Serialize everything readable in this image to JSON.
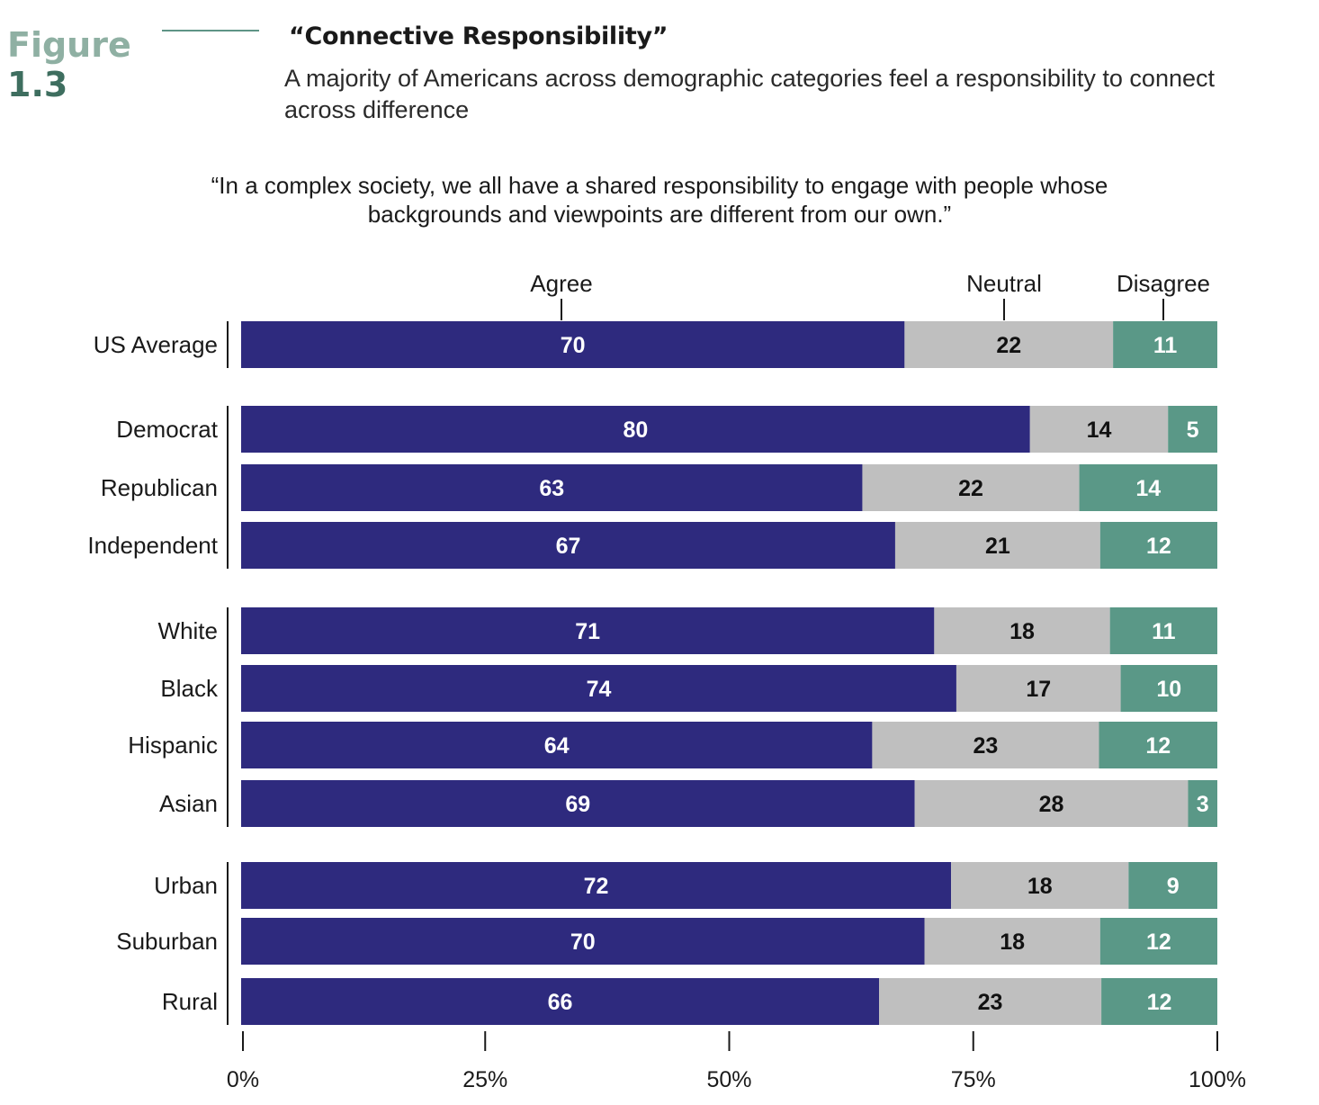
{
  "figure": {
    "word": "Figure",
    "number": "1.3"
  },
  "title": "“Connective Responsibility”",
  "subtitle": "A majority of Americans across demographic categories feel a responsibility to connect across difference",
  "question": "“In a complex society, we all have a shared responsibility to engage with people whose backgrounds and viewpoints are different from our own.”",
  "chart_data": {
    "type": "bar",
    "orientation": "horizontal",
    "stacked": true,
    "categories": [
      "US Average",
      "Democrat",
      "Republican",
      "Independent",
      "White",
      "Black",
      "Hispanic",
      "Asian",
      "Urban",
      "Suburban",
      "Rural"
    ],
    "groups": [
      [
        "US Average"
      ],
      [
        "Democrat",
        "Republican",
        "Independent"
      ],
      [
        "White",
        "Black",
        "Hispanic",
        "Asian"
      ],
      [
        "Urban",
        "Suburban",
        "Rural"
      ]
    ],
    "series": [
      {
        "name": "Agree",
        "color": "#2e2a7e",
        "label_color": "#ffffff",
        "values": [
          70,
          80,
          63,
          67,
          71,
          74,
          64,
          69,
          72,
          70,
          66
        ]
      },
      {
        "name": "Neutral",
        "color": "#bfbfbf",
        "label_color": "#111111",
        "values": [
          22,
          14,
          22,
          21,
          18,
          17,
          23,
          28,
          18,
          18,
          23
        ]
      },
      {
        "name": "Disagree",
        "color": "#5a9887",
        "label_color": "#ffffff",
        "values": [
          11,
          5,
          14,
          12,
          11,
          10,
          12,
          3,
          9,
          12,
          12
        ]
      }
    ],
    "xlim": [
      0,
      100
    ],
    "xticks": [
      "0%",
      "25%",
      "50%",
      "75%",
      "100%"
    ],
    "grid": false,
    "legend": "top, labels above segments of first bar"
  }
}
